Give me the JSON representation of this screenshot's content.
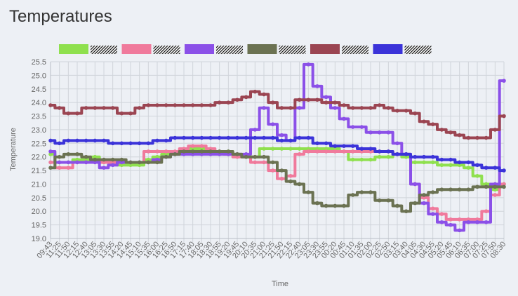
{
  "page": {
    "title": "Temperatures"
  },
  "chart_data": {
    "type": "line",
    "title": "",
    "xlabel": "Time",
    "ylabel": "Temperature",
    "ylim": [
      19.0,
      25.5
    ],
    "y_ticks": [
      19.0,
      19.5,
      20.0,
      20.5,
      21.0,
      21.5,
      22.0,
      22.5,
      23.0,
      23.5,
      24.0,
      24.5,
      25.0,
      25.5
    ],
    "categories": [
      "09:43",
      "11:25",
      "11:50",
      "12:15",
      "12:40",
      "13:05",
      "13:30",
      "13:55",
      "14:20",
      "14:45",
      "15:10",
      "15:35",
      "16:00",
      "16:25",
      "16:50",
      "17:15",
      "17:40",
      "18:05",
      "18:30",
      "18:55",
      "19:20",
      "19:45",
      "20:10",
      "20:35",
      "21:00",
      "21:25",
      "21:50",
      "22:15",
      "22:40",
      "23:05",
      "23:30",
      "23:55",
      "00:20",
      "00:45",
      "01:10",
      "01:35",
      "02:00",
      "02:25",
      "02:50",
      "03:15",
      "03:40",
      "04:05",
      "04:30",
      "04:55",
      "05:20",
      "05:45",
      "06:10",
      "06:35",
      "07:00",
      "07:25",
      "07:50",
      "08:30"
    ],
    "grid": true,
    "legend": "top",
    "series": [
      {
        "color": "#8fe04e",
        "values": [
          22.1,
          21.8,
          21.8,
          21.9,
          21.9,
          22.0,
          21.8,
          21.8,
          21.7,
          21.7,
          21.7,
          21.9,
          22.0,
          22.1,
          22.1,
          22.2,
          22.3,
          22.3,
          22.2,
          22.2,
          22.2,
          22.1,
          22.0,
          22.0,
          22.3,
          22.3,
          22.3,
          22.3,
          22.3,
          22.3,
          22.3,
          22.3,
          22.3,
          22.2,
          21.9,
          21.9,
          21.9,
          22.0,
          22.0,
          22.1,
          22.0,
          21.8,
          21.8,
          21.8,
          21.7,
          21.7,
          21.7,
          21.6,
          21.3,
          21.0,
          20.8,
          21.0
        ]
      },
      {
        "color": "#f07a9c",
        "values": [
          21.8,
          21.6,
          21.6,
          21.8,
          21.8,
          21.8,
          21.8,
          21.8,
          21.8,
          21.8,
          21.8,
          22.2,
          22.2,
          22.2,
          22.2,
          22.3,
          22.4,
          22.4,
          22.3,
          22.2,
          22.1,
          22.0,
          22.0,
          21.8,
          21.8,
          21.5,
          21.2,
          21.3,
          22.1,
          22.2,
          22.2,
          22.2,
          22.2,
          22.2,
          22.2,
          22.2,
          22.2,
          22.2,
          22.2,
          22.1,
          22.1,
          21.0,
          20.5,
          20.1,
          19.9,
          19.7,
          19.7,
          19.7,
          19.7,
          20.0,
          20.6,
          21.0
        ]
      },
      {
        "color": "#8b50e8",
        "values": [
          22.2,
          21.8,
          21.8,
          21.8,
          21.8,
          21.8,
          21.6,
          21.7,
          21.8,
          21.8,
          21.8,
          21.8,
          21.9,
          22.0,
          22.1,
          22.1,
          22.1,
          22.1,
          22.1,
          22.1,
          22.1,
          22.1,
          22.1,
          23.0,
          23.8,
          23.2,
          22.8,
          22.6,
          23.8,
          25.4,
          24.6,
          24.2,
          23.8,
          23.4,
          23.1,
          23.1,
          22.9,
          22.9,
          22.9,
          22.5,
          22.1,
          21.0,
          20.3,
          19.9,
          19.6,
          19.5,
          19.3,
          19.6,
          19.6,
          19.6,
          21.0,
          24.8
        ]
      },
      {
        "color": "#6b7252",
        "values": [
          21.6,
          22.0,
          22.1,
          22.1,
          22.0,
          21.9,
          21.9,
          21.9,
          21.9,
          21.8,
          21.8,
          21.8,
          21.8,
          22.0,
          22.1,
          22.2,
          22.2,
          22.2,
          22.2,
          22.2,
          22.2,
          22.1,
          22.0,
          22.0,
          22.0,
          21.8,
          21.5,
          21.1,
          21.0,
          20.7,
          20.3,
          20.2,
          20.2,
          20.2,
          20.6,
          20.7,
          20.7,
          20.4,
          20.4,
          20.2,
          20.0,
          20.3,
          20.6,
          20.7,
          20.8,
          20.8,
          20.8,
          20.8,
          20.9,
          20.9,
          20.9,
          20.9
        ]
      },
      {
        "color": "#9b4552",
        "values": [
          23.9,
          23.8,
          23.6,
          23.6,
          23.8,
          23.8,
          23.8,
          23.8,
          23.6,
          23.6,
          23.8,
          23.9,
          23.9,
          23.9,
          23.9,
          23.9,
          23.9,
          23.9,
          23.9,
          24.0,
          24.0,
          24.1,
          24.2,
          24.4,
          24.3,
          24.0,
          23.8,
          23.8,
          24.1,
          24.1,
          24.1,
          24.0,
          24.0,
          23.9,
          23.8,
          23.8,
          23.8,
          23.9,
          23.8,
          23.7,
          23.7,
          23.6,
          23.3,
          23.2,
          23.0,
          22.9,
          22.8,
          22.7,
          22.7,
          22.7,
          23.0,
          23.5
        ]
      },
      {
        "color": "#3b33d9",
        "values": [
          22.6,
          22.5,
          22.6,
          22.6,
          22.6,
          22.6,
          22.6,
          22.5,
          22.5,
          22.5,
          22.5,
          22.5,
          22.6,
          22.6,
          22.7,
          22.7,
          22.7,
          22.7,
          22.7,
          22.7,
          22.7,
          22.7,
          22.7,
          22.7,
          22.7,
          22.7,
          22.6,
          22.6,
          22.7,
          22.7,
          22.5,
          22.5,
          22.4,
          22.4,
          22.4,
          22.3,
          22.3,
          22.2,
          22.2,
          22.1,
          22.1,
          22.0,
          22.0,
          22.0,
          21.9,
          21.9,
          21.8,
          21.8,
          21.7,
          21.6,
          21.6,
          21.5
        ]
      }
    ]
  }
}
